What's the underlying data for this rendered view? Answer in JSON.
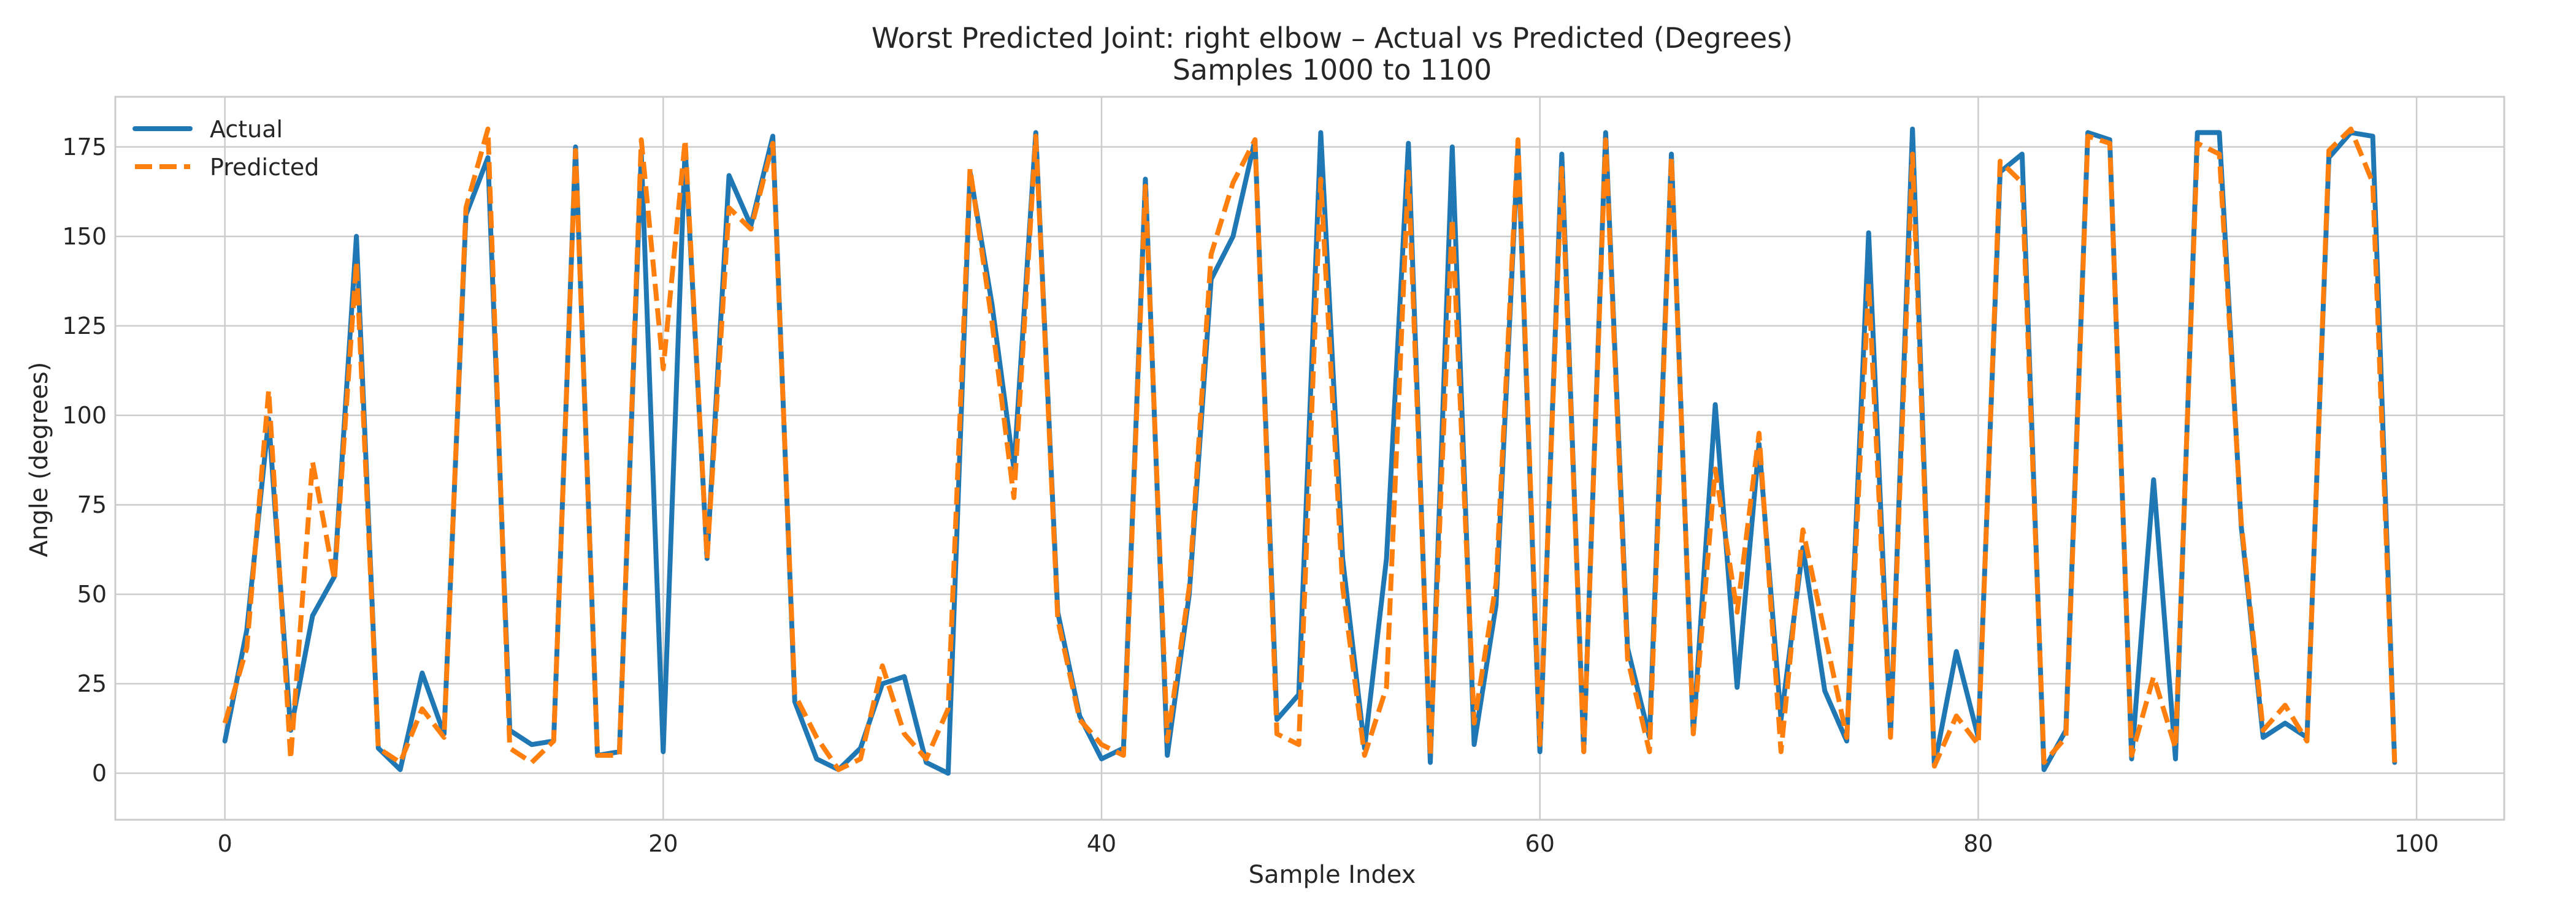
{
  "chart_data": {
    "type": "line",
    "title": "Worst Predicted Joint: right elbow – Actual vs Predicted (Degrees)",
    "subtitle": "Samples 1000 to 1100",
    "xlabel": "Sample Index",
    "ylabel": "Angle (degrees)",
    "xlim": [
      -5,
      104
    ],
    "ylim": [
      -13,
      189
    ],
    "xticks": [
      0,
      20,
      40,
      60,
      80,
      100
    ],
    "yticks": [
      0,
      25,
      50,
      75,
      100,
      125,
      150,
      175
    ],
    "grid": true,
    "legend_position": "top-left",
    "series": [
      {
        "name": "Actual",
        "color": "#1f77b4",
        "style": "solid",
        "values": [
          9,
          40,
          99,
          12,
          44,
          55,
          150,
          7,
          1,
          28,
          11,
          156,
          172,
          12,
          8,
          9,
          175,
          5,
          6,
          173,
          6,
          175,
          60,
          167,
          153,
          178,
          20,
          4,
          1,
          7,
          25,
          27,
          3,
          0,
          168,
          131,
          85,
          179,
          45,
          16,
          4,
          7,
          166,
          5,
          50,
          138,
          150,
          177,
          15,
          22,
          179,
          60,
          7,
          60,
          176,
          3,
          175,
          8,
          47,
          175,
          6,
          173,
          6,
          179,
          35,
          10,
          173,
          11,
          103,
          24,
          92,
          15,
          63,
          23,
          9,
          151,
          11,
          180,
          2,
          34,
          10,
          168,
          173,
          1,
          12,
          179,
          177,
          4,
          82,
          4,
          179,
          179,
          69,
          10,
          14,
          10,
          172,
          179,
          178,
          3
        ]
      },
      {
        "name": "Predicted",
        "color": "#ff7f0e",
        "style": "dashed",
        "values": [
          14,
          35,
          107,
          4,
          87,
          54,
          143,
          7,
          3,
          18,
          10,
          158,
          180,
          7,
          3,
          9,
          174,
          5,
          5,
          177,
          113,
          177,
          60,
          158,
          152,
          176,
          22,
          10,
          1,
          4,
          30,
          11,
          4,
          18,
          169,
          126,
          77,
          178,
          43,
          15,
          8,
          5,
          164,
          9,
          52,
          145,
          165,
          177,
          11,
          8,
          166,
          52,
          5,
          24,
          168,
          5,
          155,
          14,
          53,
          177,
          8,
          169,
          6,
          177,
          32,
          6,
          172,
          11,
          85,
          45,
          95,
          6,
          68,
          39,
          10,
          137,
          10,
          173,
          2,
          16,
          8,
          171,
          165,
          3,
          10,
          178,
          176,
          5,
          27,
          7,
          176,
          173,
          70,
          12,
          19,
          9,
          174,
          180,
          165,
          3
        ]
      }
    ]
  }
}
